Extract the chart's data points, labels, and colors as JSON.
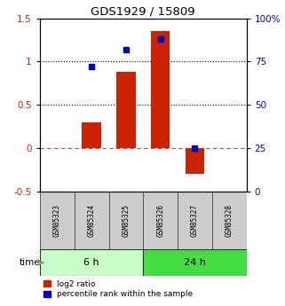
{
  "title": "GDS1929 / 15809",
  "samples": [
    "GSM85323",
    "GSM85324",
    "GSM85325",
    "GSM85326",
    "GSM85327",
    "GSM85328"
  ],
  "log2_ratio": [
    0.0,
    0.3,
    0.88,
    1.35,
    -0.3,
    0.0
  ],
  "percentile_rank": [
    null,
    72,
    82,
    88,
    25,
    null
  ],
  "ylim_left": [
    -0.5,
    1.5
  ],
  "ylim_right": [
    0,
    100
  ],
  "yticks_left": [
    -0.5,
    0.0,
    0.5,
    1.0,
    1.5
  ],
  "ytick_labels_left": [
    "-0.5",
    "0",
    "0.5",
    "1",
    "1.5"
  ],
  "yticks_right": [
    0,
    25,
    50,
    75,
    100
  ],
  "ytick_labels_right": [
    "0",
    "25",
    "50",
    "75",
    "100%"
  ],
  "hlines_dotted": [
    0.5,
    1.0
  ],
  "hline_dash": 0.0,
  "groups": [
    {
      "label": "6 h",
      "start": 0,
      "end": 3,
      "color": "#c8ffc8"
    },
    {
      "label": "24 h",
      "start": 3,
      "end": 6,
      "color": "#44dd44"
    }
  ],
  "bar_color": "#cc2200",
  "point_color": "#0000cc",
  "bar_width": 0.55,
  "background_color": "#ffffff",
  "legend_labels": [
    "log2 ratio",
    "percentile rank within the sample"
  ],
  "legend_colors": [
    "#cc2200",
    "#0000cc"
  ]
}
